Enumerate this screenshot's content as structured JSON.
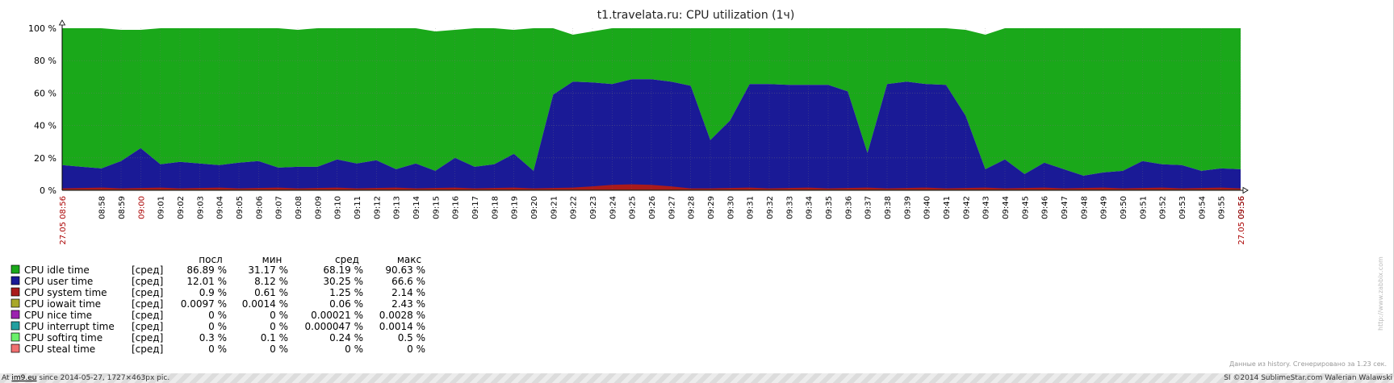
{
  "chart_data": {
    "type": "area",
    "title": "t1.travelata.ru: CPU utilization (1ч)",
    "y_ticks": [
      "0 %",
      "20 %",
      "40 %",
      "60 %",
      "80 %",
      "100 %"
    ],
    "ylim": [
      0,
      100
    ],
    "x_start_label": "27.05 08:56",
    "x_end_label": "27.05 09:56",
    "x_labels": [
      "08:58",
      "08:59",
      "09:00",
      "09:01",
      "09:02",
      "09:03",
      "09:04",
      "09:05",
      "09:06",
      "09:07",
      "09:08",
      "09:09",
      "09:10",
      "09:11",
      "09:12",
      "09:13",
      "09:14",
      "09:15",
      "09:16",
      "09:17",
      "09:18",
      "09:19",
      "09:20",
      "09:21",
      "09:22",
      "09:23",
      "09:24",
      "09:25",
      "09:26",
      "09:27",
      "09:28",
      "09:29",
      "09:30",
      "09:31",
      "09:32",
      "09:33",
      "09:34",
      "09:35",
      "09:36",
      "09:37",
      "09:38",
      "09:39",
      "09:40",
      "09:41",
      "09:42",
      "09:43",
      "09:44",
      "09:45",
      "09:46",
      "09:47",
      "09:48",
      "09:49",
      "09:50",
      "09:51",
      "09:52",
      "09:53",
      "09:54",
      "09:55",
      "09:56"
    ],
    "highlight_labels": [
      "27.05 08:56",
      "09:00",
      "27.05 09:56"
    ],
    "stack_top_user": [
      15.5,
      14.5,
      13.5,
      18,
      26,
      16,
      17.5,
      16.5,
      15.5,
      17,
      18,
      14,
      14.5,
      14.5,
      19,
      16.5,
      18.5,
      13,
      16.5,
      12,
      20,
      14.5,
      16,
      22.5,
      12,
      59,
      67,
      66.5,
      65.5,
      68.5,
      68.5,
      67,
      64.5,
      31,
      43,
      65.5,
      65.5,
      65,
      65,
      65,
      61,
      23,
      65.5,
      67,
      65.5,
      65,
      46,
      13,
      19,
      10,
      17,
      13,
      9,
      11,
      12,
      18,
      16,
      15.5,
      12,
      13.5,
      13
    ],
    "stack_top_idle": [
      100,
      100,
      100,
      99,
      99,
      100,
      100,
      100,
      100,
      100,
      100,
      100,
      99,
      100,
      100,
      100,
      100,
      100,
      100,
      98,
      99,
      100,
      100,
      99,
      100,
      100,
      96,
      98,
      100,
      100,
      100,
      100,
      100,
      100,
      100,
      100,
      100,
      100,
      100,
      100,
      100,
      100,
      100,
      100,
      100,
      100,
      99,
      96,
      100,
      100,
      100,
      100,
      100,
      100,
      100,
      100,
      100,
      100,
      100,
      100,
      100,
      100
    ],
    "series": [
      {
        "name": "CPU idle time",
        "color": "#1aa81a"
      },
      {
        "name": "CPU user time",
        "color": "#1a1a96"
      },
      {
        "name": "CPU system time",
        "color": "#aa1a1a"
      },
      {
        "name": "CPU iowait time",
        "color": "#a8a82a"
      },
      {
        "name": "CPU nice time",
        "color": "#9c22b0"
      },
      {
        "name": "CPU interrupt time",
        "color": "#22a0a0"
      },
      {
        "name": "CPU softirq time",
        "color": "#6af06a"
      },
      {
        "name": "CPU steal time",
        "color": "#f07070"
      }
    ]
  },
  "legend": {
    "headers": [
      "посл",
      "мин",
      "сред",
      "макс"
    ],
    "rows": [
      {
        "name": "CPU idle time",
        "func": "[сред]",
        "last": "86.89 %",
        "min": "31.17 %",
        "avg": "68.19 %",
        "max": "90.63 %"
      },
      {
        "name": "CPU user time",
        "func": "[сред]",
        "last": "12.01 %",
        "min": "8.12 %",
        "avg": "30.25 %",
        "max": "66.6 %"
      },
      {
        "name": "CPU system time",
        "func": "[сред]",
        "last": "0.9 %",
        "min": "0.61 %",
        "avg": "1.25 %",
        "max": "2.14 %"
      },
      {
        "name": "CPU iowait time",
        "func": "[сред]",
        "last": "0.0097 %",
        "min": "0.0014 %",
        "avg": "0.06 %",
        "max": "2.43 %"
      },
      {
        "name": "CPU nice time",
        "func": "[сред]",
        "last": "0 %",
        "min": "0 %",
        "avg": "0.00021 %",
        "max": "0.0028 %"
      },
      {
        "name": "CPU interrupt time",
        "func": "[сред]",
        "last": "0 %",
        "min": "0 %",
        "avg": "0.000047 %",
        "max": "0.0014 %"
      },
      {
        "name": "CPU softirq time",
        "func": "[сред]",
        "last": "0.3 %",
        "min": "0.1 %",
        "avg": "0.24 %",
        "max": "0.5 %"
      },
      {
        "name": "CPU steal time",
        "func": "[сред]",
        "last": "0 %",
        "min": "0 %",
        "avg": "0 %",
        "max": "0 %"
      }
    ]
  },
  "meta": {
    "generated_note": "Данные из history. Сгенерировано за 1.23 сек.",
    "watermark": "http://www.zabbix.com"
  },
  "footer": {
    "at": "At",
    "site": "im9.eu",
    "rest": "since 2014-05-27, 1727×463px pic.",
    "copyright": "SI ©2014 SublimeStar.com Walerian Walawski"
  }
}
